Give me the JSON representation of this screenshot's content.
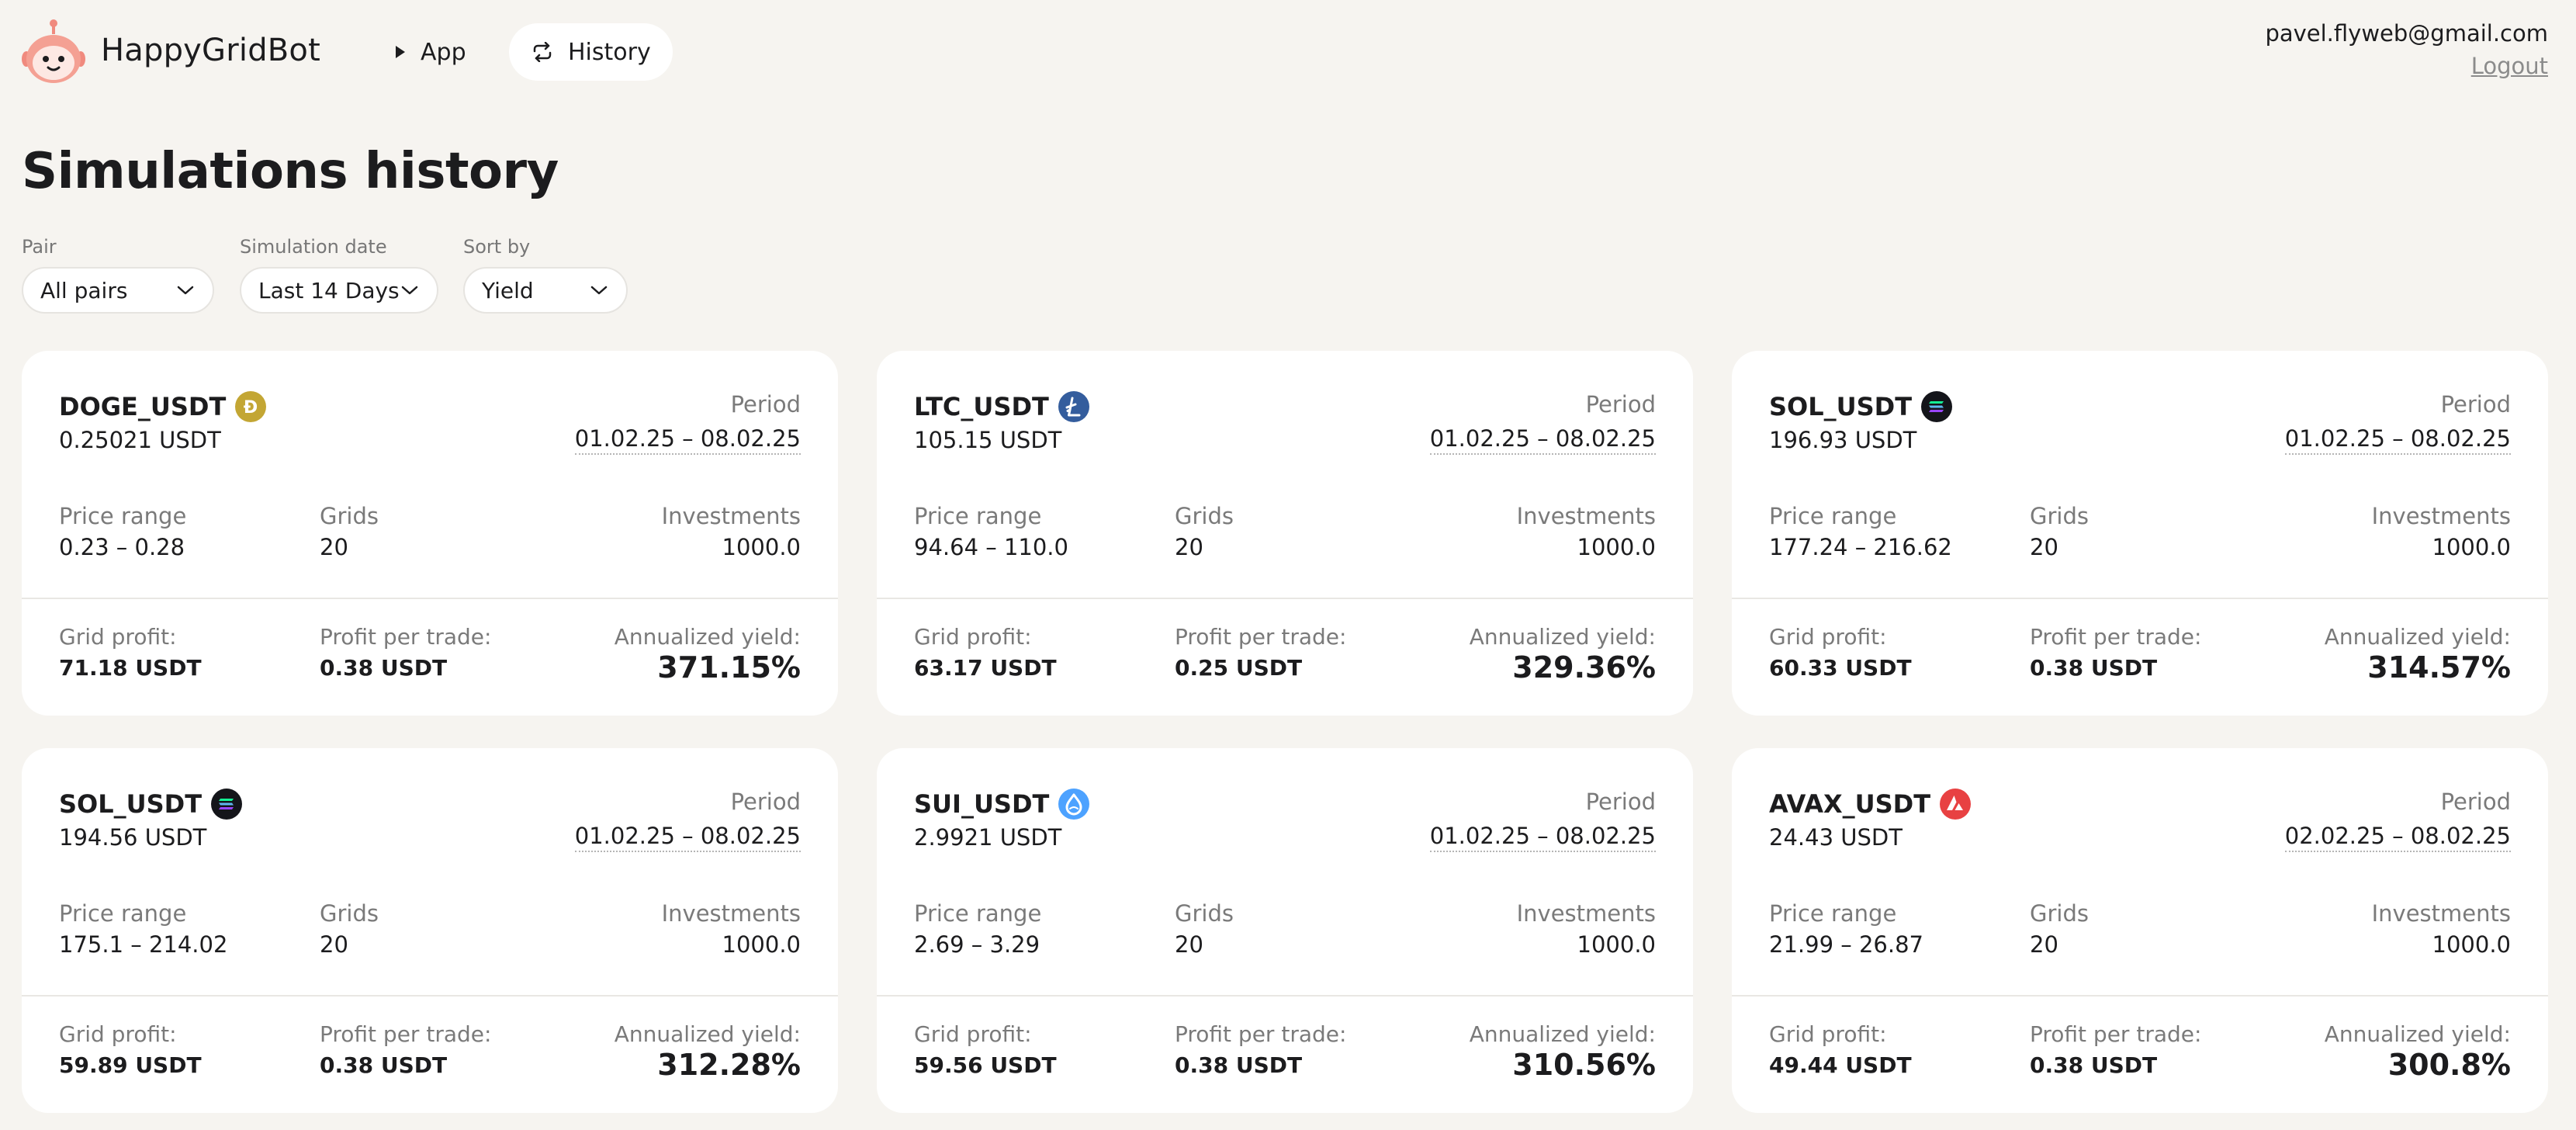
{
  "app": {
    "brand": "HappyGridBot",
    "nav": {
      "app_label": "App",
      "history_label": "History"
    },
    "user": {
      "email": "pavel.flyweb@gmail.com",
      "logout_label": "Logout"
    }
  },
  "page": {
    "title": "Simulations history"
  },
  "filters": {
    "pair": {
      "label": "Pair",
      "value": "All pairs"
    },
    "date": {
      "label": "Simulation date",
      "value": "Last 14 Days"
    },
    "sort": {
      "label": "Sort by",
      "value": "Yield"
    }
  },
  "labels": {
    "period": "Period",
    "price_range": "Price range",
    "grids": "Grids",
    "investments": "Investments",
    "grid_profit": "Grid profit:",
    "profit_per_trade": "Profit per trade:",
    "annualized_yield": "Annualized yield:"
  },
  "cards": [
    {
      "pair": "DOGE_USDT",
      "coin_icon": "doge-icon",
      "coin_color": "#c3a634",
      "price": "0.25021 USDT",
      "period": "01.02.25 – 08.02.25",
      "price_range": "0.23 – 0.28",
      "grids": "20",
      "investments": "1000.0",
      "grid_profit": "71.18 USDT",
      "profit_per_trade": "0.38 USDT",
      "yield": "371.15%"
    },
    {
      "pair": "LTC_USDT",
      "coin_icon": "litecoin-icon",
      "coin_color": "#345d9d",
      "price": "105.15 USDT",
      "period": "01.02.25 – 08.02.25",
      "price_range": "94.64 – 110.0",
      "grids": "20",
      "investments": "1000.0",
      "grid_profit": "63.17 USDT",
      "profit_per_trade": "0.25 USDT",
      "yield": "329.36%"
    },
    {
      "pair": "SOL_USDT",
      "coin_icon": "solana-icon",
      "coin_color": "#14151a",
      "price": "196.93 USDT",
      "period": "01.02.25 – 08.02.25",
      "price_range": "177.24 – 216.62",
      "grids": "20",
      "investments": "1000.0",
      "grid_profit": "60.33 USDT",
      "profit_per_trade": "0.38 USDT",
      "yield": "314.57%"
    },
    {
      "pair": "SOL_USDT",
      "coin_icon": "solana-icon",
      "coin_color": "#14151a",
      "price": "194.56 USDT",
      "period": "01.02.25 – 08.02.25",
      "price_range": "175.1 – 214.02",
      "grids": "20",
      "investments": "1000.0",
      "grid_profit": "59.89 USDT",
      "profit_per_trade": "0.38 USDT",
      "yield": "312.28%"
    },
    {
      "pair": "SUI_USDT",
      "coin_icon": "sui-icon",
      "coin_color": "#4da2ff",
      "price": "2.9921 USDT",
      "period": "01.02.25 – 08.02.25",
      "price_range": "2.69 – 3.29",
      "grids": "20",
      "investments": "1000.0",
      "grid_profit": "59.56 USDT",
      "profit_per_trade": "0.38 USDT",
      "yield": "310.56%"
    },
    {
      "pair": "AVAX_USDT",
      "coin_icon": "avalanche-icon",
      "coin_color": "#e84142",
      "price": "24.43 USDT",
      "period": "02.02.25 – 08.02.25",
      "price_range": "21.99 – 26.87",
      "grids": "20",
      "investments": "1000.0",
      "grid_profit": "49.44 USDT",
      "profit_per_trade": "0.38 USDT",
      "yield": "300.8%"
    }
  ]
}
